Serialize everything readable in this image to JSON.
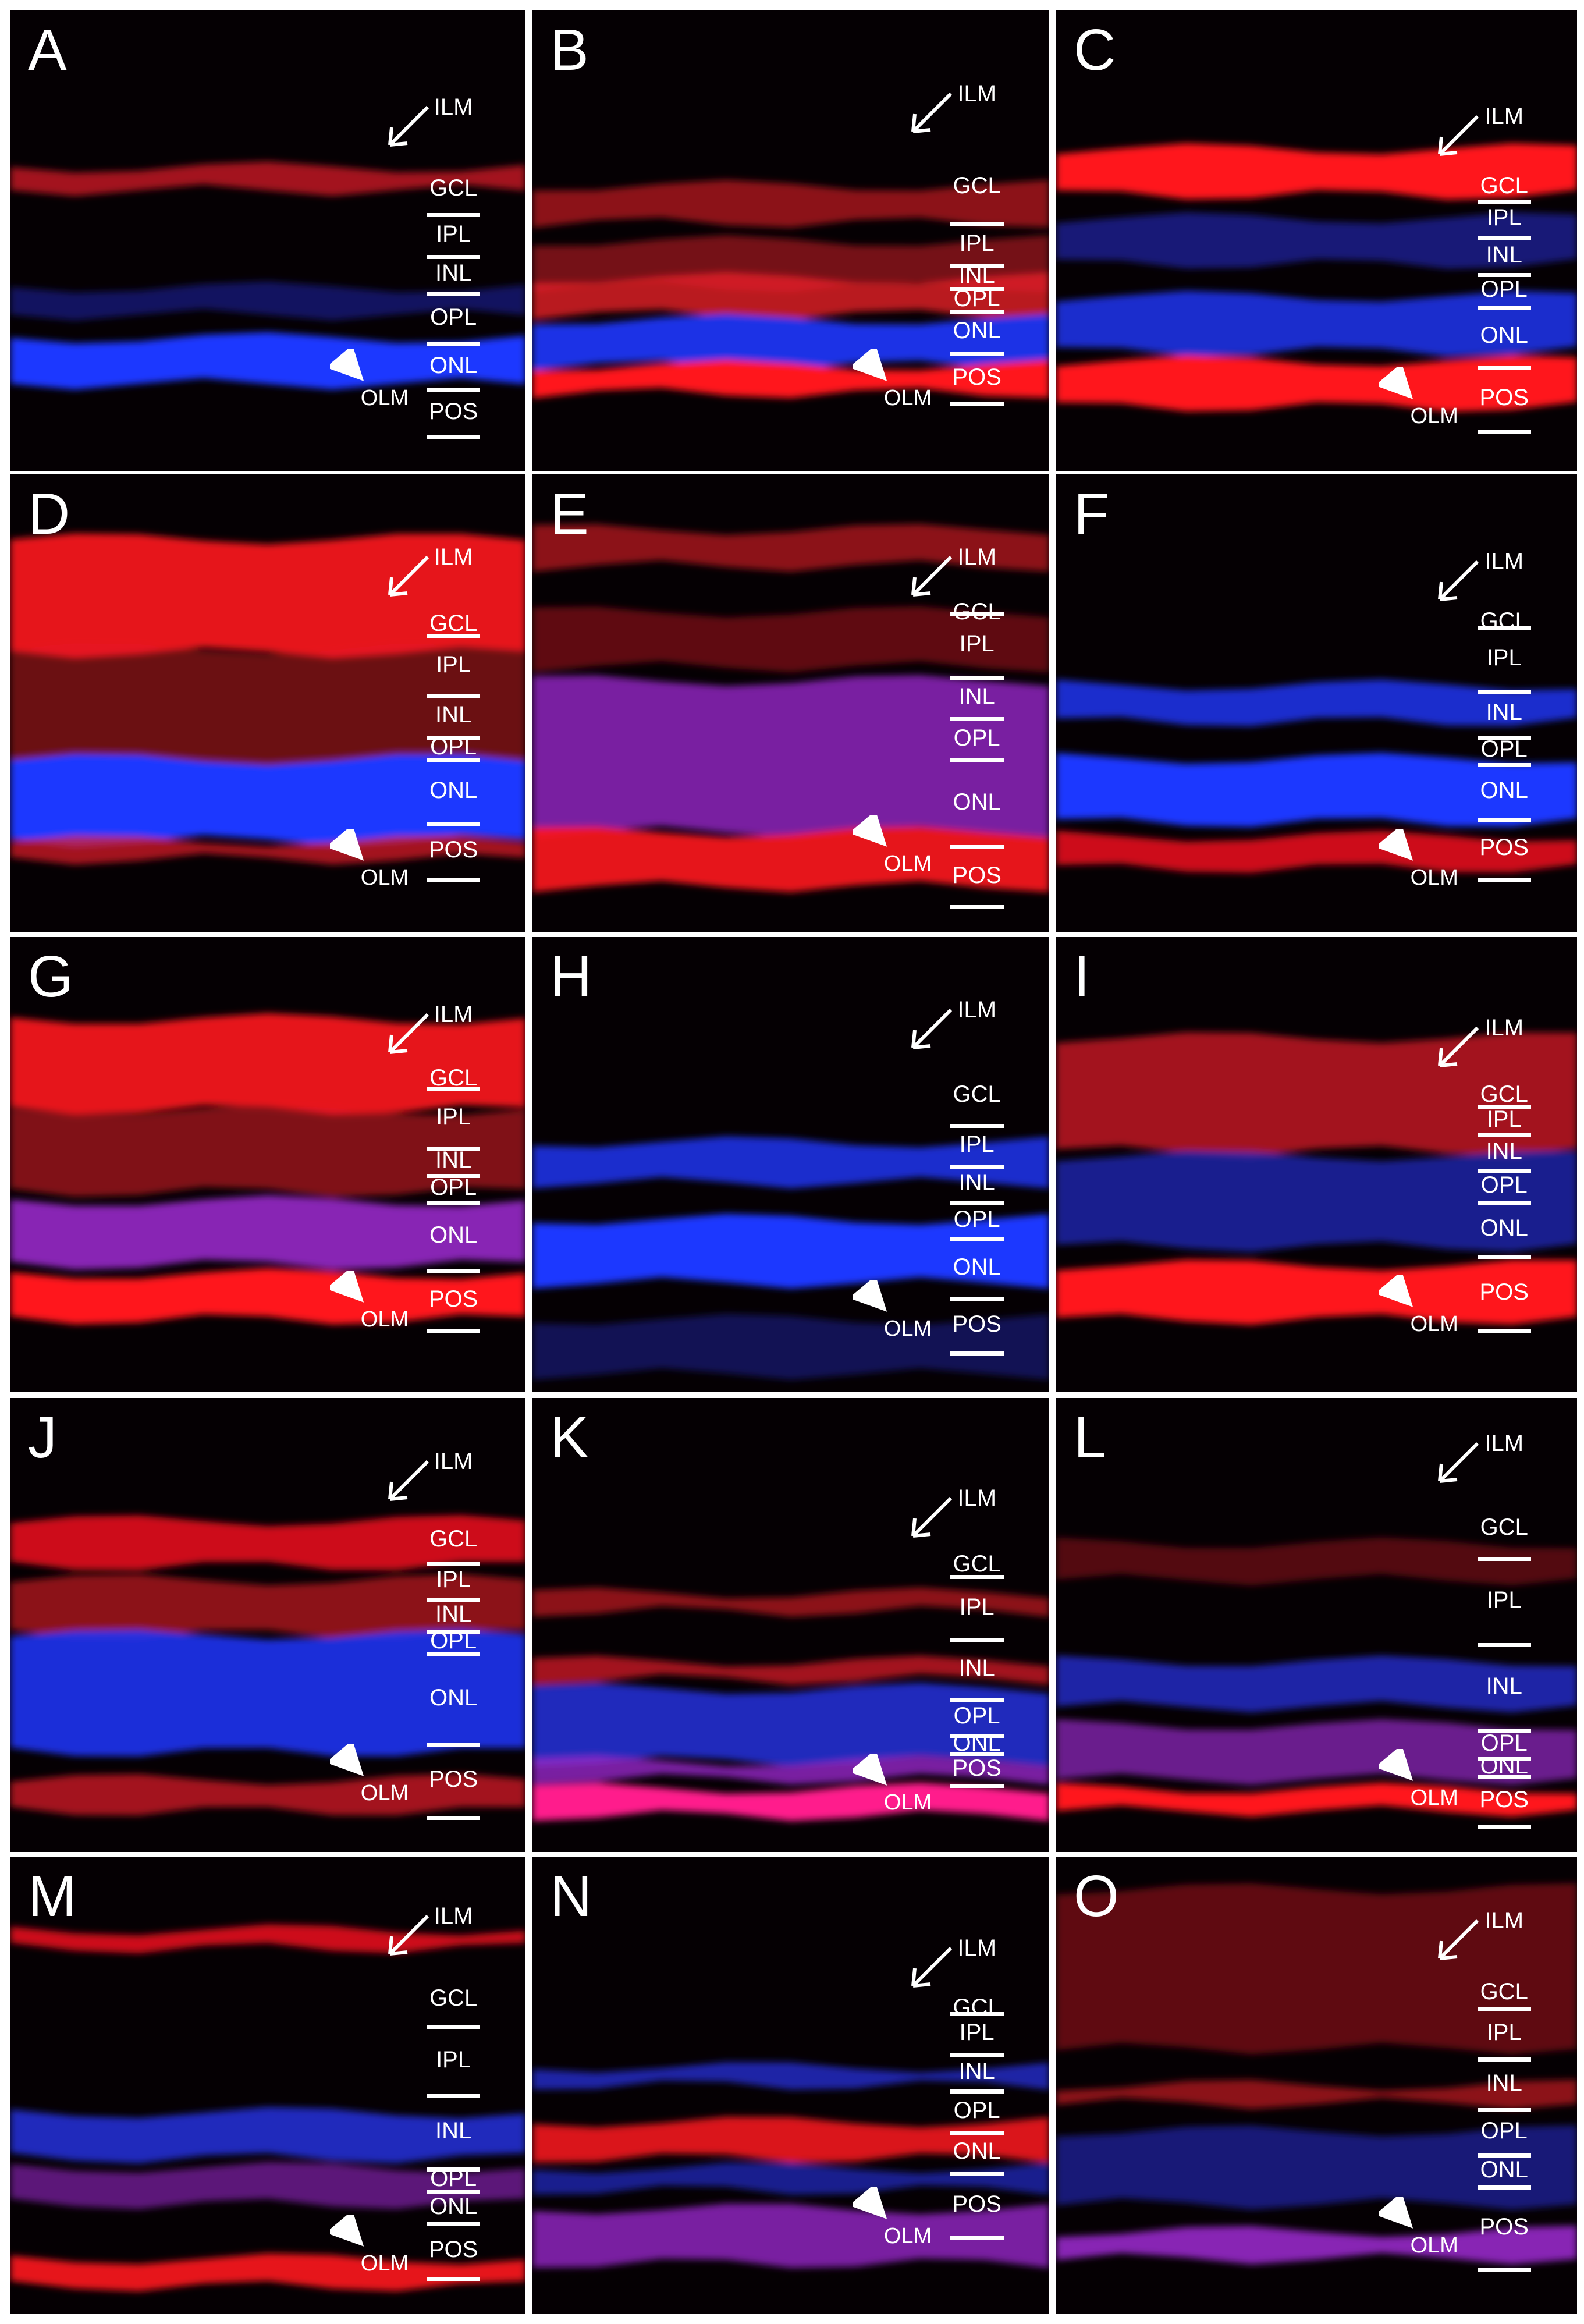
{
  "figure": {
    "panels": [
      {
        "letter": "A",
        "layers": [
          "ILM",
          "GCL",
          "IPL",
          "INL",
          "OPL",
          "ONL",
          "POS"
        ],
        "olm": "OLM"
      },
      {
        "letter": "B",
        "layers": [
          "ILM",
          "GCL",
          "IPL",
          "INL",
          "OPL",
          "ONL",
          "POS"
        ],
        "olm": "OLM"
      },
      {
        "letter": "C",
        "layers": [
          "ILM",
          "GCL",
          "IPL",
          "INL",
          "OPL",
          "ONL",
          "POS"
        ],
        "olm": "OLM"
      },
      {
        "letter": "D",
        "layers": [
          "ILM",
          "GCL",
          "IPL",
          "INL",
          "OPL",
          "ONL",
          "POS"
        ],
        "olm": "OLM"
      },
      {
        "letter": "E",
        "layers": [
          "ILM",
          "GCL",
          "IPL",
          "INL",
          "OPL",
          "ONL",
          "POS"
        ],
        "olm": "OLM"
      },
      {
        "letter": "F",
        "layers": [
          "ILM",
          "GCL",
          "IPL",
          "INL",
          "OPL",
          "ONL",
          "POS"
        ],
        "olm": "OLM"
      },
      {
        "letter": "G",
        "layers": [
          "ILM",
          "GCL",
          "IPL",
          "INL",
          "OPL",
          "ONL",
          "POS"
        ],
        "olm": "OLM"
      },
      {
        "letter": "H",
        "layers": [
          "ILM",
          "GCL",
          "IPL",
          "INL",
          "OPL",
          "ONL",
          "POS"
        ],
        "olm": "OLM"
      },
      {
        "letter": "I",
        "layers": [
          "ILM",
          "GCL",
          "IPL",
          "INL",
          "OPL",
          "ONL",
          "POS"
        ],
        "olm": "OLM"
      },
      {
        "letter": "J",
        "layers": [
          "ILM",
          "GCL",
          "IPL",
          "INL",
          "OPL",
          "ONL",
          "POS"
        ],
        "olm": "OLM"
      },
      {
        "letter": "K",
        "layers": [
          "ILM",
          "GCL",
          "IPL",
          "INL",
          "OPL",
          "ONL",
          "POS"
        ],
        "olm": "OLM"
      },
      {
        "letter": "L",
        "layers": [
          "ILM",
          "GCL",
          "IPL",
          "INL",
          "OPL",
          "ONL",
          "POS"
        ],
        "olm": "OLM"
      },
      {
        "letter": "M",
        "layers": [
          "ILM",
          "GCL",
          "IPL",
          "INL",
          "OPL",
          "ONL",
          "POS"
        ],
        "olm": "OLM"
      },
      {
        "letter": "N",
        "layers": [
          "ILM",
          "GCL",
          "IPL",
          "INL",
          "OPL",
          "ONL",
          "POS"
        ],
        "olm": "OLM"
      },
      {
        "letter": "O",
        "layers": [
          "ILM",
          "GCL",
          "IPL",
          "INL",
          "OPL",
          "ONL",
          "POS"
        ],
        "olm": "OLM"
      }
    ],
    "colors": {
      "stain_red": "#ff2020",
      "stain_blue": "#2a3cff",
      "background": "#050003",
      "annotation": "#ffffff"
    }
  }
}
